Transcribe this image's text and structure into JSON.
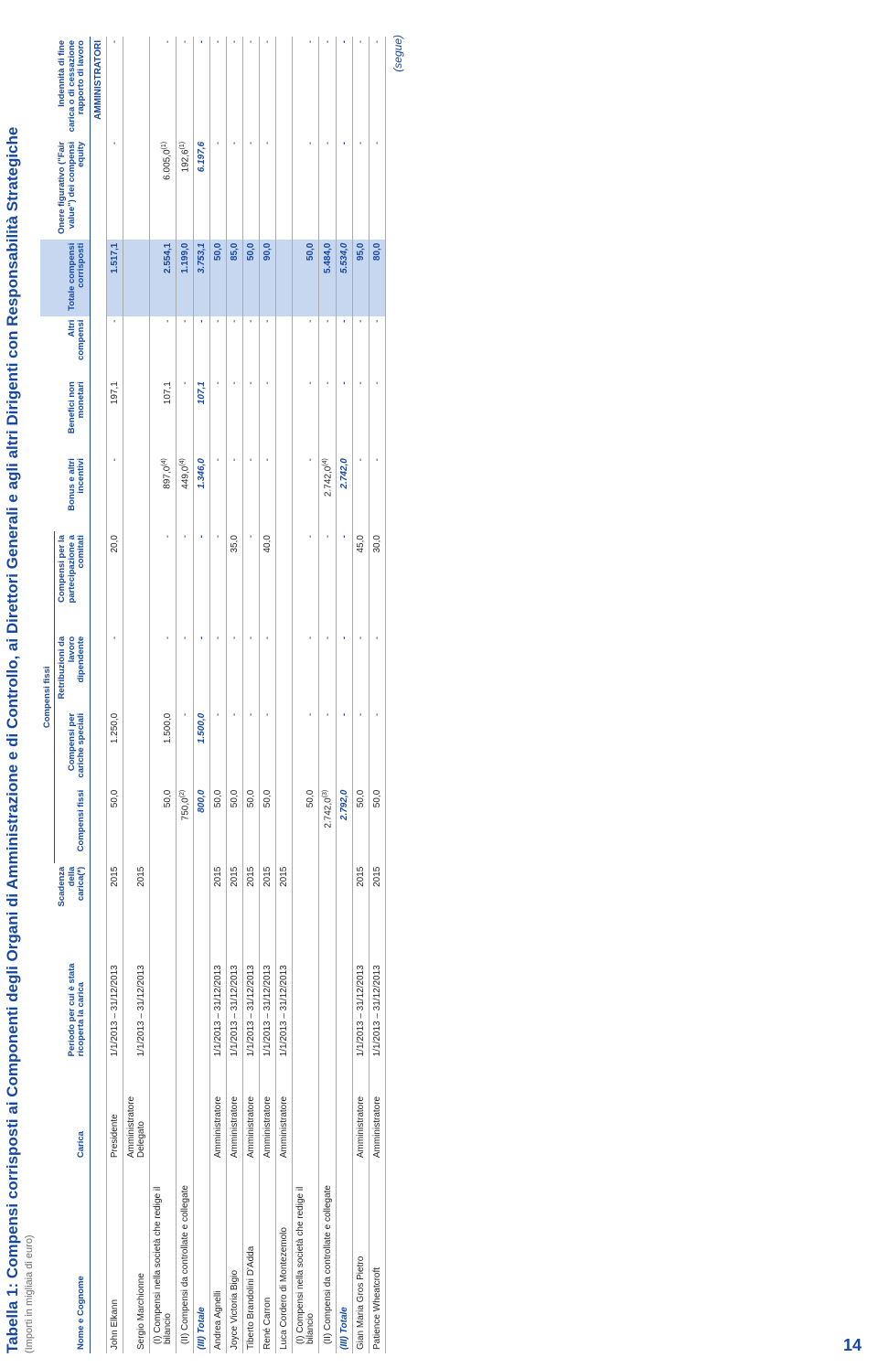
{
  "title": "Tabella 1: Compensi corrisposti ai Componenti degli Organi di Amministrazione e di Controllo, ai Direttori Generali e agli altri Dirigenti con Responsabilità Strategiche",
  "subnote": "(Importi in migliaia di euro)",
  "segue": "(segue)",
  "page_number": "14",
  "columns": {
    "nome": "Nome e Cognome",
    "carica": "Carica",
    "periodo": "Periodo per cui è stata ricoperta la carica",
    "scadenza": "Scadenza della carica(*)",
    "group_fissi": "Compensi fissi",
    "comp_fissi": "Compensi fissi",
    "cariche_speciali": "Compensi per cariche speciali",
    "retrib_dip": "Retribuzioni da lavoro dipendente",
    "comitati": "Compensi per la partecipazione a comitati",
    "bonus": "Bonus e altri incentivi",
    "benefici": "Benefici non monetari",
    "altri": "Altri compensi",
    "totale": "Totale compensi corrisposti",
    "fairvalue": "Onere figurativo (\"Fair value\") dei compensi equity",
    "indennita": "Indennità di fine carica o di cessazione rapporto di lavoro"
  },
  "colors": {
    "brand_blue": "#17479e",
    "highlight_bg": "#c7d7f0",
    "rule": "#a7a9ac",
    "ink": "#231f20",
    "muted": "#6d6e71",
    "background": "#ffffff"
  },
  "typography": {
    "title_size_pt": 13,
    "body_size_pt": 8,
    "header_size_pt": 8,
    "font_family": "Arial"
  },
  "section_label": "AMMINISTRATORI",
  "rows": [
    {
      "type": "section"
    },
    {
      "type": "data",
      "nome": "John Elkann",
      "carica": "Presidente",
      "periodo": "1/1/2013 – 31/12/2013",
      "scad": "2015",
      "fissi": "50,0",
      "speciali": "1.250,0",
      "dip": "-",
      "comitati": "20,0",
      "bonus": "-",
      "benefici": "197,1",
      "altri": "-",
      "totale": "1.517,1",
      "fair": "-",
      "ind": "-"
    },
    {
      "type": "data",
      "nome": "Sergio Marchionne",
      "carica": "Amministratore Delegato",
      "periodo": "1/1/2013 – 31/12/2013",
      "scad": "2015",
      "fissi": "",
      "speciali": "",
      "dip": "",
      "comitati": "",
      "bonus": "",
      "benefici": "",
      "altri": "",
      "totale": "",
      "fair": "",
      "ind": ""
    },
    {
      "type": "sub",
      "nome": "(I)  Compensi nella società che redige il bilancio",
      "carica": "",
      "periodo": "",
      "scad": "",
      "fissi": "50,0",
      "speciali": "1.500,0",
      "dip": "-",
      "comitati": "-",
      "bonus": "897,0",
      "bonus_fn": "(4)",
      "benefici": "107,1",
      "altri": "-",
      "totale": "2.554,1",
      "fair": "6.005,0",
      "fair_fn": "(1)",
      "ind": "-"
    },
    {
      "type": "sub",
      "nome": "(II) Compensi da controllate e collegate",
      "carica": "",
      "periodo": "",
      "scad": "",
      "fissi": "750,0",
      "fissi_fn": "(2)",
      "speciali": "-",
      "dip": "-",
      "comitati": "-",
      "bonus": "449,0",
      "bonus_fn": "(4)",
      "benefici": "-",
      "altri": "-",
      "totale": "1.199,0",
      "fair": "192,6",
      "fair_fn": "(1)",
      "ind": "-"
    },
    {
      "type": "total",
      "nome": "(III) Totale",
      "carica": "",
      "periodo": "",
      "scad": "",
      "fissi": "800,0",
      "speciali": "1.500,0",
      "dip": "-",
      "comitati": "-",
      "bonus": "1.346,0",
      "benefici": "107,1",
      "altri": "-",
      "totale": "3.753,1",
      "fair": "6.197,6",
      "ind": "-"
    },
    {
      "type": "data",
      "nome": "Andrea Agnelli",
      "carica": "Amministratore",
      "periodo": "1/1/2013 – 31/12/2013",
      "scad": "2015",
      "fissi": "50,0",
      "speciali": "-",
      "dip": "-",
      "comitati": "-",
      "bonus": "-",
      "benefici": "-",
      "altri": "-",
      "totale": "50,0",
      "fair": "-",
      "ind": "-"
    },
    {
      "type": "data",
      "nome": "Joyce Victoria Bigio",
      "carica": "Amministratore",
      "periodo": "1/1/2013 – 31/12/2013",
      "scad": "2015",
      "fissi": "50,0",
      "speciali": "-",
      "dip": "-",
      "comitati": "35,0",
      "bonus": "-",
      "benefici": "-",
      "altri": "-",
      "totale": "85,0",
      "fair": "-",
      "ind": "-"
    },
    {
      "type": "data",
      "nome": "Tiberto Brandolini D'Adda",
      "carica": "Amministratore",
      "periodo": "1/1/2013 – 31/12/2013",
      "scad": "2015",
      "fissi": "50,0",
      "speciali": "-",
      "dip": "-",
      "comitati": "-",
      "bonus": "-",
      "benefici": "-",
      "altri": "-",
      "totale": "50,0",
      "fair": "-",
      "ind": "-"
    },
    {
      "type": "data",
      "nome": "René Carron",
      "carica": "Amministratore",
      "periodo": "1/1/2013 – 31/12/2013",
      "scad": "2015",
      "fissi": "50,0",
      "speciali": "-",
      "dip": "-",
      "comitati": "40,0",
      "bonus": "-",
      "benefici": "-",
      "altri": "-",
      "totale": "90,0",
      "fair": "-",
      "ind": "-"
    },
    {
      "type": "data",
      "nome": "Luca Cordero di Montezemolo",
      "carica": "Amministratore",
      "periodo": "1/1/2013 – 31/12/2013",
      "scad": "2015",
      "fissi": "",
      "speciali": "",
      "dip": "",
      "comitati": "",
      "bonus": "",
      "benefici": "",
      "altri": "",
      "totale": "",
      "fair": "",
      "ind": ""
    },
    {
      "type": "sub",
      "nome": "(I)  Compensi nella società che redige il bilancio",
      "carica": "",
      "periodo": "",
      "scad": "",
      "fissi": "50,0",
      "speciali": "-",
      "dip": "-",
      "comitati": "-",
      "bonus": "-",
      "benefici": "-",
      "altri": "-",
      "totale": "50,0",
      "fair": "-",
      "ind": "-"
    },
    {
      "type": "sub",
      "nome": "(II) Compensi da controllate e collegate",
      "carica": "",
      "periodo": "",
      "scad": "",
      "fissi": "2.742,0",
      "fissi_fn": "(3)",
      "speciali": "-",
      "dip": "-",
      "comitati": "-",
      "bonus": "2.742,0",
      "bonus_fn": "(4)",
      "benefici": "-",
      "altri": "-",
      "totale": "5.484,0",
      "fair": "-",
      "ind": "-"
    },
    {
      "type": "total",
      "nome": "(III) Totale",
      "carica": "",
      "periodo": "",
      "scad": "",
      "fissi": "2.792,0",
      "speciali": "-",
      "dip": "-",
      "comitati": "-",
      "bonus": "2.742,0",
      "benefici": "-",
      "altri": "-",
      "totale": "5.534,0",
      "fair": "-",
      "ind": "-"
    },
    {
      "type": "data",
      "nome": "Gian Maria Gros Pietro",
      "carica": "Amministratore",
      "periodo": "1/1/2013 – 31/12/2013",
      "scad": "2015",
      "fissi": "50,0",
      "speciali": "-",
      "dip": "-",
      "comitati": "45,0",
      "bonus": "-",
      "benefici": "-",
      "altri": "-",
      "totale": "95,0",
      "fair": "-",
      "ind": "-"
    },
    {
      "type": "data",
      "nome": "Patience Wheatcroft",
      "carica": "Amministratore",
      "periodo": "1/1/2013 – 31/12/2013",
      "scad": "2015",
      "fissi": "50,0",
      "speciali": "-",
      "dip": "-",
      "comitati": "30,0",
      "bonus": "-",
      "benefici": "-",
      "altri": "-",
      "totale": "80,0",
      "fair": "-",
      "ind": "-"
    }
  ]
}
